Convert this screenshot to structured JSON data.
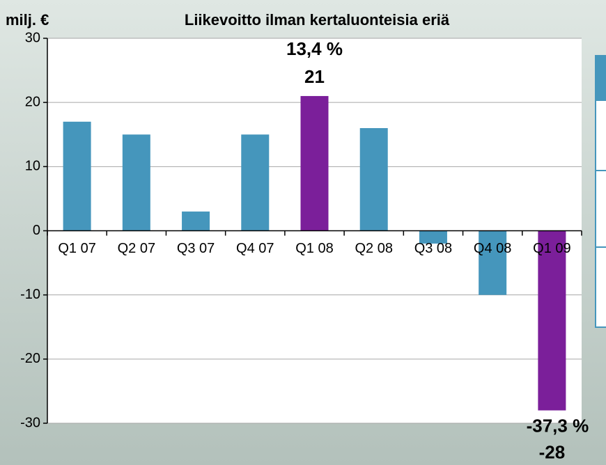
{
  "chart_data": {
    "type": "bar",
    "title": "Liikevoitto ilman kertaluonteisia eriä",
    "ylabel": "milj. €",
    "categories": [
      "Q1 07",
      "Q2 07",
      "Q3 07",
      "Q4 07",
      "Q1 08",
      "Q2 08",
      "Q3 08",
      "Q4 08",
      "Q1 09"
    ],
    "values": [
      17,
      15,
      3,
      15,
      21,
      16,
      -2,
      -10,
      -28
    ],
    "colors": [
      "#4596bc",
      "#4596bc",
      "#4596bc",
      "#4596bc",
      "#7b1f9a",
      "#4596bc",
      "#4596bc",
      "#4596bc",
      "#7b1f9a"
    ],
    "ylim": [
      -30,
      30
    ],
    "yticks": [
      -30,
      -20,
      -10,
      0,
      10,
      20,
      30
    ],
    "grid": true,
    "annotations": [
      {
        "category": "Q1 08",
        "text": "13,4 %"
      },
      {
        "category": "Q1 09",
        "text": "-37,3 %"
      }
    ]
  }
}
